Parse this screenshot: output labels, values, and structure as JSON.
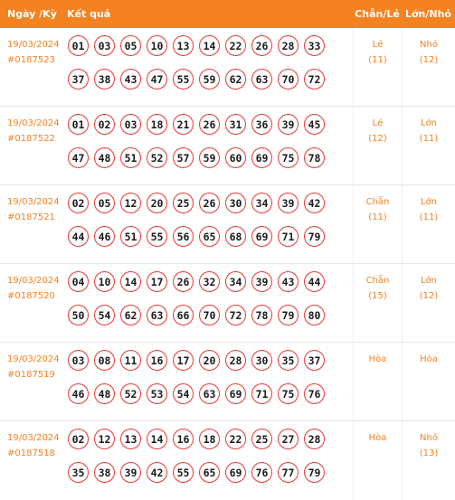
{
  "header": {
    "date_col": "Ngày /Kỳ",
    "result_col": "Kết quả",
    "even_odd_col": "Chẵn/Lẻ",
    "big_small_col": "Lớn/Nhỏ"
  },
  "rows": [
    {
      "date": "19/03/2024",
      "draw": "#0187523",
      "numbers": [
        "01",
        "03",
        "05",
        "10",
        "13",
        "14",
        "22",
        "26",
        "28",
        "33",
        "37",
        "38",
        "43",
        "47",
        "55",
        "59",
        "62",
        "63",
        "70",
        "72"
      ],
      "even_odd": "Lẻ",
      "even_odd_count": "(11)",
      "big_small": "Nhỏ",
      "big_small_count": "(12)"
    },
    {
      "date": "19/03/2024",
      "draw": "#0187522",
      "numbers": [
        "01",
        "02",
        "03",
        "18",
        "21",
        "26",
        "31",
        "36",
        "39",
        "45",
        "47",
        "48",
        "51",
        "52",
        "57",
        "59",
        "60",
        "69",
        "75",
        "78"
      ],
      "even_odd": "Lẻ",
      "even_odd_count": "(12)",
      "big_small": "Lớn",
      "big_small_count": "(11)"
    },
    {
      "date": "19/03/2024",
      "draw": "#0187521",
      "numbers": [
        "02",
        "05",
        "12",
        "20",
        "25",
        "26",
        "30",
        "34",
        "39",
        "42",
        "44",
        "46",
        "51",
        "55",
        "56",
        "65",
        "68",
        "69",
        "71",
        "79"
      ],
      "even_odd": "Chẵn",
      "even_odd_count": "(11)",
      "big_small": "Lớn",
      "big_small_count": "(11)"
    },
    {
      "date": "19/03/2024",
      "draw": "#0187520",
      "numbers": [
        "04",
        "10",
        "14",
        "17",
        "26",
        "32",
        "34",
        "39",
        "43",
        "44",
        "50",
        "54",
        "62",
        "63",
        "66",
        "70",
        "72",
        "78",
        "79",
        "80"
      ],
      "even_odd": "Chẵn",
      "even_odd_count": "(15)",
      "big_small": "Lớn",
      "big_small_count": "(12)"
    },
    {
      "date": "19/03/2024",
      "draw": "#0187519",
      "numbers": [
        "03",
        "08",
        "11",
        "16",
        "17",
        "20",
        "28",
        "30",
        "35",
        "37",
        "46",
        "48",
        "52",
        "53",
        "54",
        "63",
        "69",
        "71",
        "75",
        "76"
      ],
      "even_odd": "Hòa",
      "even_odd_count": "",
      "big_small": "Hòa",
      "big_small_count": ""
    },
    {
      "date": "19/03/2024",
      "draw": "#0187518",
      "numbers": [
        "02",
        "12",
        "13",
        "14",
        "16",
        "18",
        "22",
        "25",
        "27",
        "28",
        "35",
        "38",
        "39",
        "42",
        "55",
        "65",
        "69",
        "76",
        "77",
        "79"
      ],
      "even_odd": "Hòa",
      "even_odd_count": "",
      "big_small": "Nhỏ",
      "big_small_count": "(13)"
    }
  ],
  "colors": {
    "accent": "#f58220",
    "ball_border": "#e53935"
  }
}
